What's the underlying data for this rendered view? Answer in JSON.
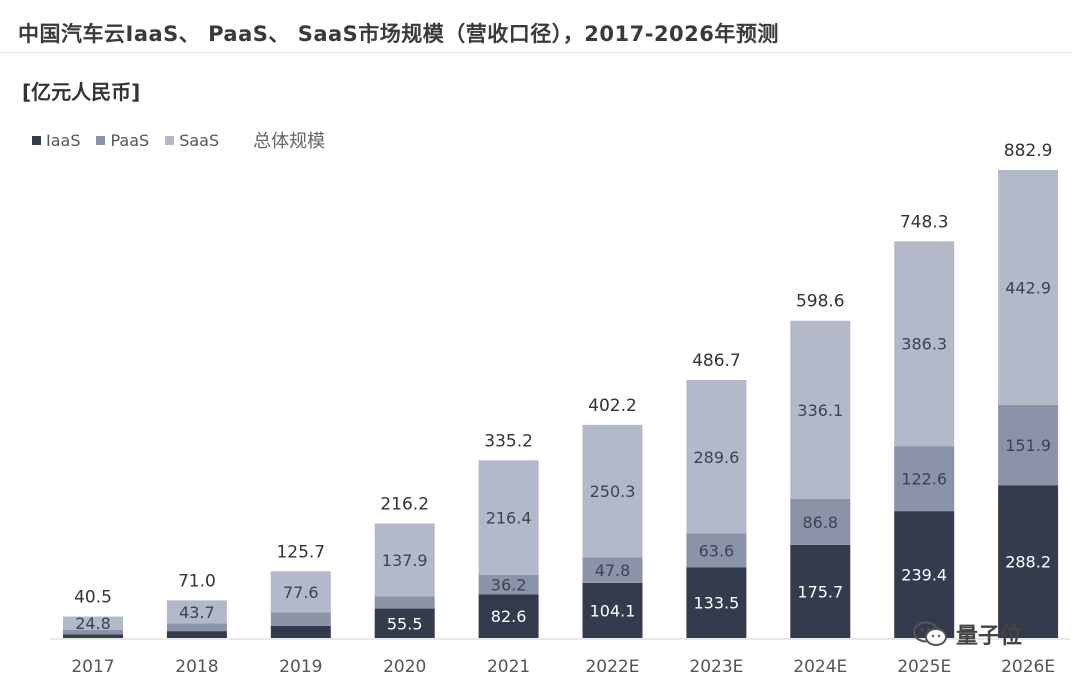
{
  "title": "中国汽车云IaaS、 PaaS、 SaaS市场规模（营收口径），2017-2026年预测",
  "unit": "[亿元人民币]",
  "legend": {
    "iaas": "IaaS",
    "paas": "PaaS",
    "saas": "SaaS",
    "total": "总体规模"
  },
  "watermark": "量子位",
  "colors": {
    "iaas": "#343b4c",
    "paas": "#8a93a8",
    "saas": "#b4b9c9"
  },
  "chart_data": {
    "type": "bar",
    "stacked": true,
    "categories": [
      "2017",
      "2018",
      "2019",
      "2020",
      "2021",
      "2022E",
      "2023E",
      "2024E",
      "2025E",
      "2026E"
    ],
    "series": [
      {
        "name": "IaaS",
        "values": [
          7.0,
          13.0,
          23.0,
          55.5,
          82.6,
          104.1,
          133.5,
          175.7,
          239.4,
          288.2
        ],
        "labels": [
          "",
          "",
          "",
          "55.5",
          "82.6",
          "104.1",
          "133.5",
          "175.7",
          "239.4",
          "288.2"
        ]
      },
      {
        "name": "PaaS",
        "values": [
          8.7,
          14.3,
          25.1,
          22.8,
          36.2,
          47.8,
          63.6,
          86.8,
          122.6,
          151.9
        ],
        "labels": [
          "",
          "",
          "",
          "",
          "36.2",
          "47.8",
          "63.6",
          "86.8",
          "122.6",
          "151.9"
        ]
      },
      {
        "name": "SaaS",
        "values": [
          24.8,
          43.7,
          77.6,
          137.9,
          216.4,
          250.3,
          289.6,
          336.1,
          386.3,
          442.9
        ],
        "labels": [
          "24.8",
          "43.7",
          "77.6",
          "137.9",
          "216.4",
          "250.3",
          "289.6",
          "336.1",
          "386.3",
          "442.9"
        ]
      }
    ],
    "totals": [
      40.5,
      71.0,
      125.7,
      216.2,
      335.2,
      402.2,
      486.7,
      598.6,
      748.3,
      882.9
    ],
    "total_labels": [
      "40.5",
      "71.0",
      "125.7",
      "216.2",
      "335.2",
      "402.2",
      "486.7",
      "598.6",
      "748.3",
      "882.9"
    ],
    "legend_position": "top-left",
    "grid": false,
    "ylim": [
      0,
      882.9
    ]
  }
}
